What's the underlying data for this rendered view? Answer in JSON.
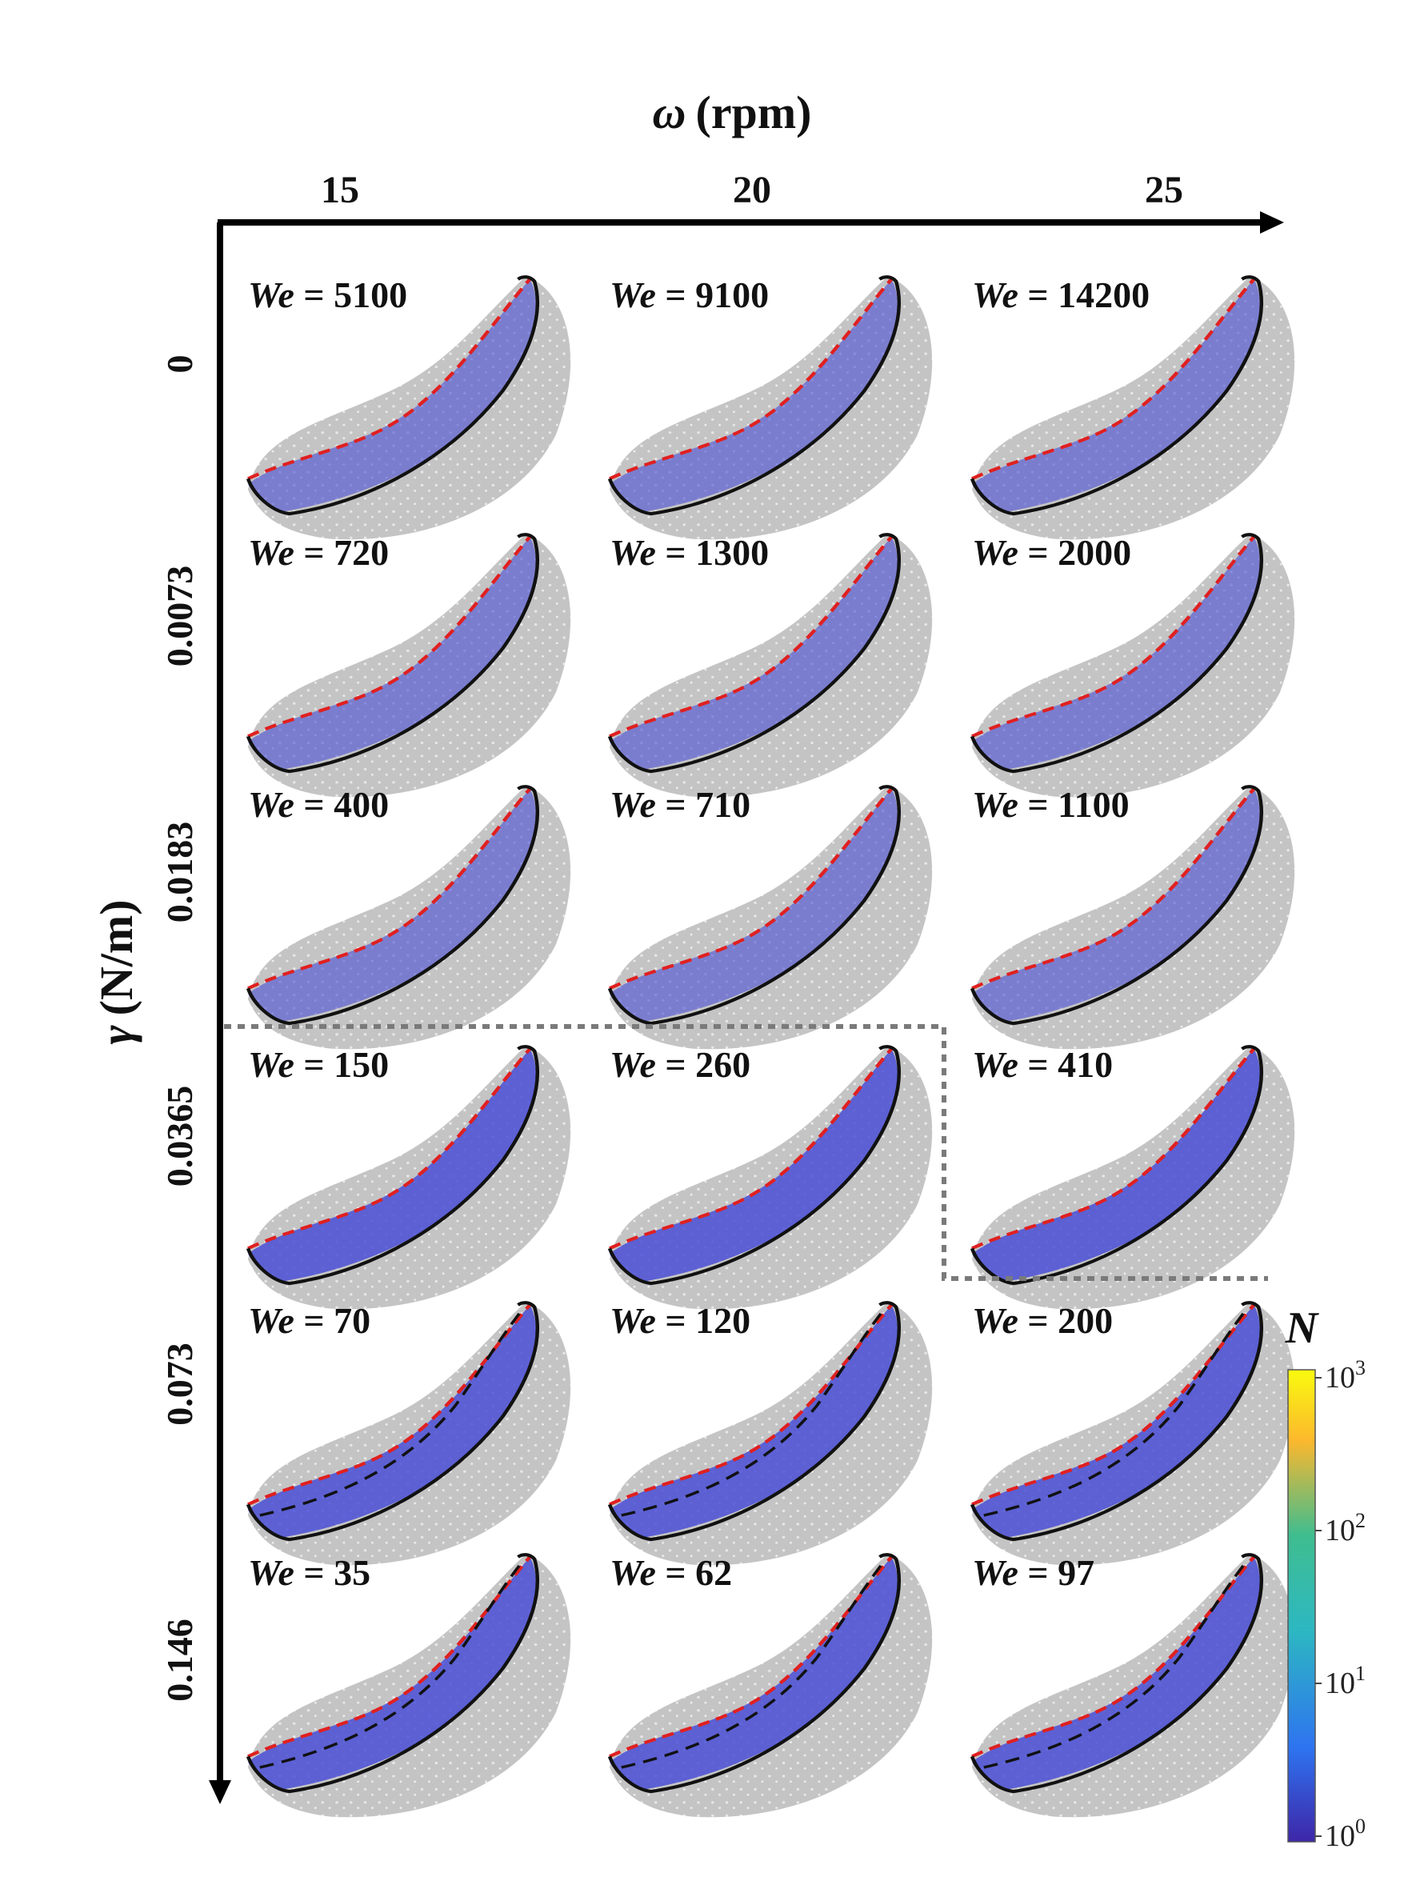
{
  "x_axis": {
    "symbol": "ω",
    "unit": "(rpm)",
    "ticks": [
      "15",
      "20",
      "25"
    ]
  },
  "y_axis": {
    "symbol": "γ",
    "unit": "(N/m)",
    "ticks": [
      "0",
      "0.0073",
      "0.0183",
      "0.0365",
      "0.073",
      "0.146"
    ]
  },
  "panels": [
    [
      "5100",
      "9100",
      "14200"
    ],
    [
      "720",
      "1300",
      "2000"
    ],
    [
      "400",
      "710",
      "1100"
    ],
    [
      "150",
      "260",
      "410"
    ],
    [
      "70",
      "120",
      "200"
    ],
    [
      "35",
      "62",
      "97"
    ]
  ],
  "panel_label_prefix": "We",
  "colorbar": {
    "title": "N",
    "ticks": [
      {
        "base": "10",
        "exp": "3"
      },
      {
        "base": "10",
        "exp": "2"
      },
      {
        "base": "10",
        "exp": "1"
      },
      {
        "base": "10",
        "exp": "0"
      }
    ],
    "colors": [
      "#f9fb0e",
      "#fcb82d",
      "#2db8c1",
      "#3fbd8f",
      "#2e74f0",
      "#3e26a8"
    ]
  },
  "colors": {
    "bed": "#c4c4c4",
    "particles": "#4a4fd6",
    "free_surface": "#e02020",
    "fit_line": "#111111",
    "divider": "#7a7a7a"
  }
}
